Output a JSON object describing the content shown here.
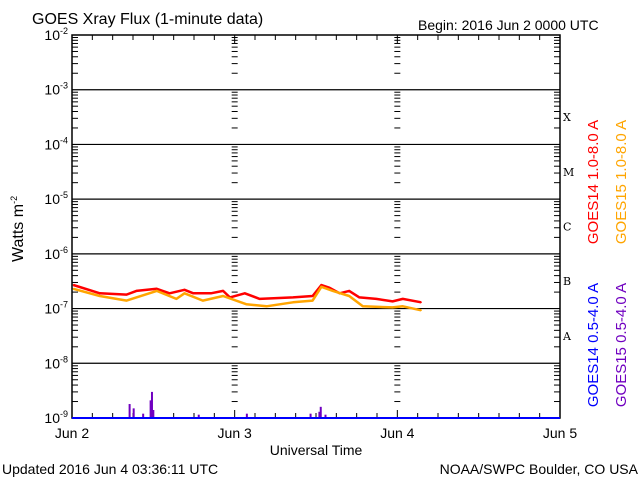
{
  "chart_data": {
    "type": "line",
    "title": "GOES Xray Flux (1-minute data)",
    "begin_label": "Begin:  2016 Jun 2 0000 UTC",
    "xlabel": "Universal Time",
    "ylabel": "Watts m",
    "ylabel_sup": "-2",
    "x_unit": "hours since 2016 Jun 2 0000 UTC",
    "xlim": [
      0,
      72
    ],
    "ylim": [
      1e-09,
      0.01
    ],
    "yscale": "log",
    "x_ticks": [
      {
        "value": 0,
        "label": "Jun 2"
      },
      {
        "value": 24,
        "label": "Jun 3"
      },
      {
        "value": 48,
        "label": "Jun 4"
      },
      {
        "value": 72,
        "label": "Jun 5"
      }
    ],
    "y_ticks": [
      {
        "value": -2,
        "base": "10",
        "exp": "-2"
      },
      {
        "value": -3,
        "base": "10",
        "exp": "-3"
      },
      {
        "value": -4,
        "base": "10",
        "exp": "-4"
      },
      {
        "value": -5,
        "base": "10",
        "exp": "-5"
      },
      {
        "value": -6,
        "base": "10",
        "exp": "-6"
      },
      {
        "value": -7,
        "base": "10",
        "exp": "-7"
      },
      {
        "value": -8,
        "base": "10",
        "exp": "-8"
      },
      {
        "value": -9,
        "base": "10",
        "exp": "-9"
      }
    ],
    "flare_classes": [
      {
        "label": "X",
        "at": -3.5
      },
      {
        "label": "M",
        "at": -4.5
      },
      {
        "label": "C",
        "at": -5.5
      },
      {
        "label": "B",
        "at": -6.5
      },
      {
        "label": "A",
        "at": -7.5
      }
    ],
    "grid": true,
    "legend_placement": "right",
    "series": [
      {
        "name": "GOES14 1.0-8.0 A",
        "color": "#ff0000",
        "x": [
          0.2,
          4.1,
          8.05,
          9.5,
          12.5,
          14.4,
          16.6,
          17.9,
          20.5,
          22.3,
          23.3,
          25.5,
          27.7,
          32.6,
          35.5,
          36.8,
          38.0,
          39.5,
          40.9,
          42.4,
          44.9,
          47.3,
          48.8,
          51.5
        ],
        "y": [
          2.7e-07,
          1.9e-07,
          1.8e-07,
          2.1e-07,
          2.3e-07,
          1.9e-07,
          2.2e-07,
          1.9e-07,
          1.9e-07,
          2.1e-07,
          1.6e-07,
          1.9e-07,
          1.5e-07,
          1.6e-07,
          1.7e-07,
          2.7e-07,
          2.4e-07,
          1.9e-07,
          2.1e-07,
          1.6e-07,
          1.5e-07,
          1.35e-07,
          1.5e-07,
          1.3e-07
        ]
      },
      {
        "name": "GOES15 1.0-8.0 A",
        "color": "#ffa500",
        "x": [
          0.2,
          4.1,
          8.05,
          12.5,
          15.4,
          16.6,
          19.3,
          22.3,
          25.7,
          28.7,
          32.6,
          35.5,
          36.8,
          38.5,
          40.9,
          42.9,
          47.3,
          48.8,
          51.5
        ],
        "y": [
          2.3e-07,
          1.7e-07,
          1.4e-07,
          2.1e-07,
          1.5e-07,
          1.9e-07,
          1.4e-07,
          1.7e-07,
          1.2e-07,
          1.1e-07,
          1.3e-07,
          1.4e-07,
          2.5e-07,
          2.1e-07,
          1.7e-07,
          1.1e-07,
          1.05e-07,
          1.1e-07,
          9.3e-08
        ]
      },
      {
        "name": "GOES14 0.5-4.0 A",
        "color": "#0000ff",
        "x": [],
        "y": []
      },
      {
        "name": "GOES15 0.5-4.0 A",
        "color": "#7000c0",
        "x": [
          8.5,
          9.1,
          10.5,
          11.6,
          11.8,
          12.0,
          18.7,
          25.8,
          35.2,
          36.5,
          36.7,
          37.4
        ],
        "y": [
          1.8e-09,
          1.5e-09,
          1.2e-09,
          2.1e-09,
          3e-09,
          1.4e-09,
          1.15e-09,
          1.2e-09,
          1.2e-09,
          1.3e-09,
          1.6e-09,
          1.15e-09
        ]
      }
    ]
  },
  "footer": {
    "updated": "Updated 2016 Jun  4 03:36:11 UTC",
    "source": "NOAA/SWPC Boulder, CO USA"
  }
}
